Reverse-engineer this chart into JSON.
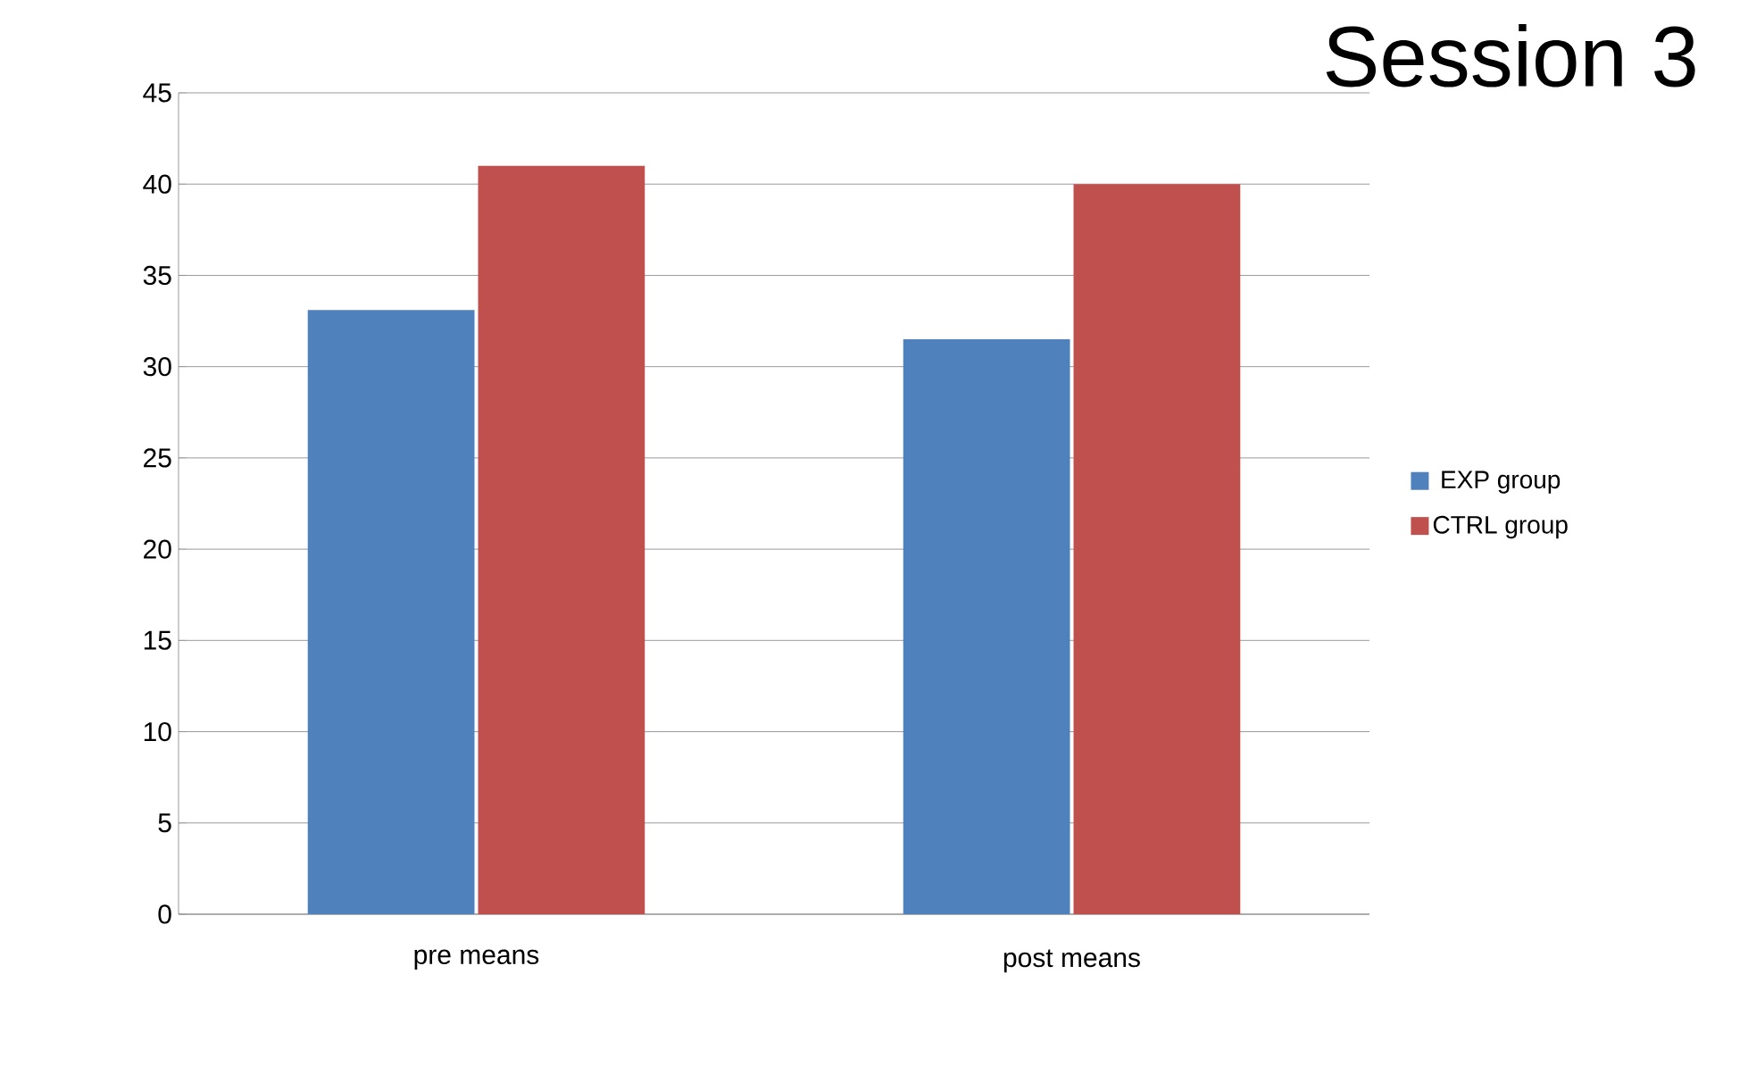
{
  "chart_data": {
    "type": "bar",
    "title": "Session 3",
    "categories": [
      "pre means",
      "post means"
    ],
    "series": [
      {
        "name": "EXP group",
        "color": "#4f81bd",
        "values": [
          33.1,
          31.5
        ]
      },
      {
        "name": "CTRL group",
        "color": "#c0504d",
        "values": [
          41,
          40
        ]
      }
    ],
    "ylim": [
      0,
      45
    ],
    "yticks": [
      0,
      5,
      10,
      15,
      20,
      25,
      30,
      35,
      40,
      45
    ],
    "grid": "y",
    "legend": "right"
  }
}
